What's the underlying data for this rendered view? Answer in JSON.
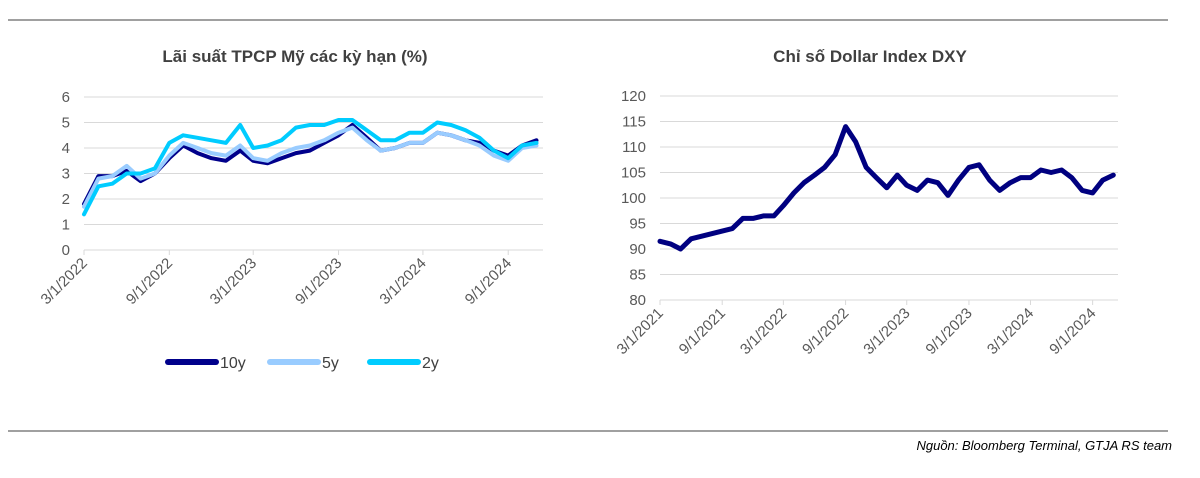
{
  "source": "Nguồn: Bloomberg Terminal,  GTJA RS team",
  "chart_data": [
    {
      "type": "line",
      "title": "Lãi suất TPCP Mỹ các kỳ hạn (%)",
      "ylim": [
        0,
        6
      ],
      "yticks": [
        "0",
        "1",
        "2",
        "3",
        "4",
        "5",
        "6"
      ],
      "xticks": [
        "3/1/2022",
        "9/1/2022",
        "3/1/2023",
        "9/1/2023",
        "3/1/2024",
        "9/1/2024"
      ],
      "xlim": [
        "2022-03-01",
        "2024-11-15"
      ],
      "grid": true,
      "legend": "bottom",
      "x": [
        "2022-03-01",
        "2022-04-01",
        "2022-05-01",
        "2022-06-01",
        "2022-07-01",
        "2022-08-01",
        "2022-09-01",
        "2022-10-01",
        "2022-11-01",
        "2022-12-01",
        "2023-01-01",
        "2023-02-01",
        "2023-03-01",
        "2023-04-01",
        "2023-05-01",
        "2023-06-01",
        "2023-07-01",
        "2023-08-01",
        "2023-09-01",
        "2023-10-01",
        "2023-11-01",
        "2023-12-01",
        "2024-01-01",
        "2024-02-01",
        "2024-03-01",
        "2024-04-01",
        "2024-05-01",
        "2024-06-01",
        "2024-07-01",
        "2024-08-01",
        "2024-09-01",
        "2024-10-01",
        "2024-11-01"
      ],
      "series": [
        {
          "name": "10y",
          "color": "#00008B",
          "values": [
            1.8,
            2.9,
            2.9,
            3.1,
            2.7,
            3.0,
            3.6,
            4.1,
            3.8,
            3.6,
            3.5,
            3.9,
            3.5,
            3.4,
            3.6,
            3.8,
            3.9,
            4.2,
            4.5,
            4.9,
            4.4,
            3.9,
            4.0,
            4.2,
            4.2,
            4.6,
            4.5,
            4.3,
            4.2,
            3.9,
            3.7,
            4.1,
            4.3
          ]
        },
        {
          "name": "5y",
          "color": "#99CCFF",
          "values": [
            1.7,
            2.8,
            2.9,
            3.3,
            2.8,
            3.0,
            3.7,
            4.2,
            4.0,
            3.8,
            3.7,
            4.1,
            3.6,
            3.5,
            3.8,
            4.0,
            4.1,
            4.3,
            4.6,
            4.8,
            4.3,
            3.9,
            4.0,
            4.2,
            4.2,
            4.6,
            4.5,
            4.3,
            4.1,
            3.7,
            3.5,
            4.0,
            4.1
          ]
        },
        {
          "name": "2y",
          "color": "#00CCFF",
          "values": [
            1.4,
            2.5,
            2.6,
            3.0,
            3.0,
            3.2,
            4.2,
            4.5,
            4.4,
            4.3,
            4.2,
            4.9,
            4.0,
            4.1,
            4.3,
            4.8,
            4.9,
            4.9,
            5.1,
            5.1,
            4.7,
            4.3,
            4.3,
            4.6,
            4.6,
            5.0,
            4.9,
            4.7,
            4.4,
            3.9,
            3.6,
            4.1,
            4.2
          ]
        }
      ]
    },
    {
      "type": "line",
      "title": "Chỉ số Dollar Index DXY",
      "ylim": [
        80,
        120
      ],
      "yticks": [
        "80",
        "85",
        "90",
        "95",
        "100",
        "105",
        "110",
        "115",
        "120"
      ],
      "xticks": [
        "3/1/2021",
        "9/1/2021",
        "3/1/2022",
        "9/1/2022",
        "3/1/2023",
        "9/1/2023",
        "3/1/2024",
        "9/1/2024"
      ],
      "xlim": [
        "2021-03-01",
        "2024-11-15"
      ],
      "grid": true,
      "x": [
        "2021-03-01",
        "2021-04-01",
        "2021-05-01",
        "2021-06-01",
        "2021-07-01",
        "2021-08-01",
        "2021-09-01",
        "2021-10-01",
        "2021-11-01",
        "2021-12-01",
        "2022-01-01",
        "2022-02-01",
        "2022-03-01",
        "2022-04-01",
        "2022-05-01",
        "2022-06-01",
        "2022-07-01",
        "2022-08-01",
        "2022-09-01",
        "2022-10-01",
        "2022-11-01",
        "2022-12-01",
        "2023-01-01",
        "2023-02-01",
        "2023-03-01",
        "2023-04-01",
        "2023-05-01",
        "2023-06-01",
        "2023-07-01",
        "2023-08-01",
        "2023-09-01",
        "2023-10-01",
        "2023-11-01",
        "2023-12-01",
        "2024-01-01",
        "2024-02-01",
        "2024-03-01",
        "2024-04-01",
        "2024-05-01",
        "2024-06-01",
        "2024-07-01",
        "2024-08-01",
        "2024-09-01",
        "2024-10-01",
        "2024-11-01"
      ],
      "series": [
        {
          "color": "#000080",
          "values": [
            91.5,
            91,
            90,
            92,
            92.5,
            93,
            93.5,
            94,
            96,
            96,
            96.5,
            96.5,
            98.5,
            101,
            103,
            104.5,
            106,
            108.5,
            114,
            111,
            106,
            104,
            102,
            104.5,
            102.5,
            101.5,
            103.5,
            103,
            100.5,
            103.5,
            106,
            106.5,
            103.5,
            101.5,
            103,
            104,
            104,
            105.5,
            105,
            105.5,
            104,
            101.5,
            101,
            103.5,
            104.5
          ]
        }
      ]
    }
  ]
}
